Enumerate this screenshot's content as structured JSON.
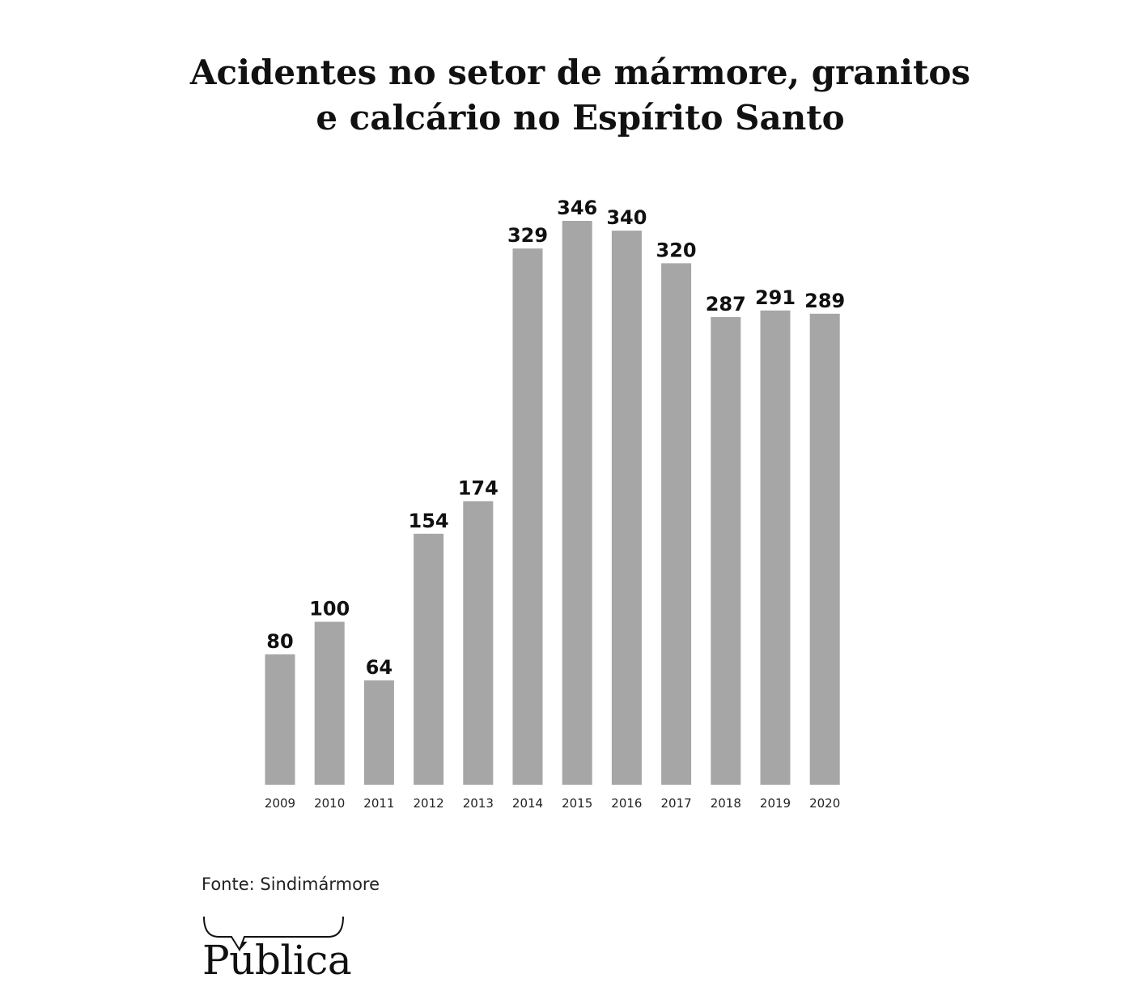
{
  "title_line1": "Acidentes no setor de mármore, granitos",
  "title_line2": "e calcário no Espírito Santo",
  "source": "Fonte: Sindimármore",
  "logo_text": "Pública",
  "colors": {
    "bar": "#a6a6a6",
    "text": "#111111",
    "background": "#ffffff"
  },
  "chart_data": {
    "type": "bar",
    "title": "Acidentes no setor de mármore, granitos e calcário no Espírito Santo",
    "categories": [
      "2009",
      "2010",
      "2011",
      "2012",
      "2013",
      "2014",
      "2015",
      "2016",
      "2017",
      "2018",
      "2019",
      "2020"
    ],
    "values": [
      80,
      100,
      64,
      154,
      174,
      329,
      346,
      340,
      320,
      287,
      291,
      289
    ],
    "data_labels": [
      "80",
      "100",
      "64",
      "154",
      "174",
      "329",
      "346",
      "340",
      "320",
      "287",
      "291",
      "289"
    ],
    "xlabel": "",
    "ylabel": "",
    "ylim": [
      0,
      346
    ],
    "grid": false,
    "legend": "none",
    "value_axis_shown": false
  }
}
